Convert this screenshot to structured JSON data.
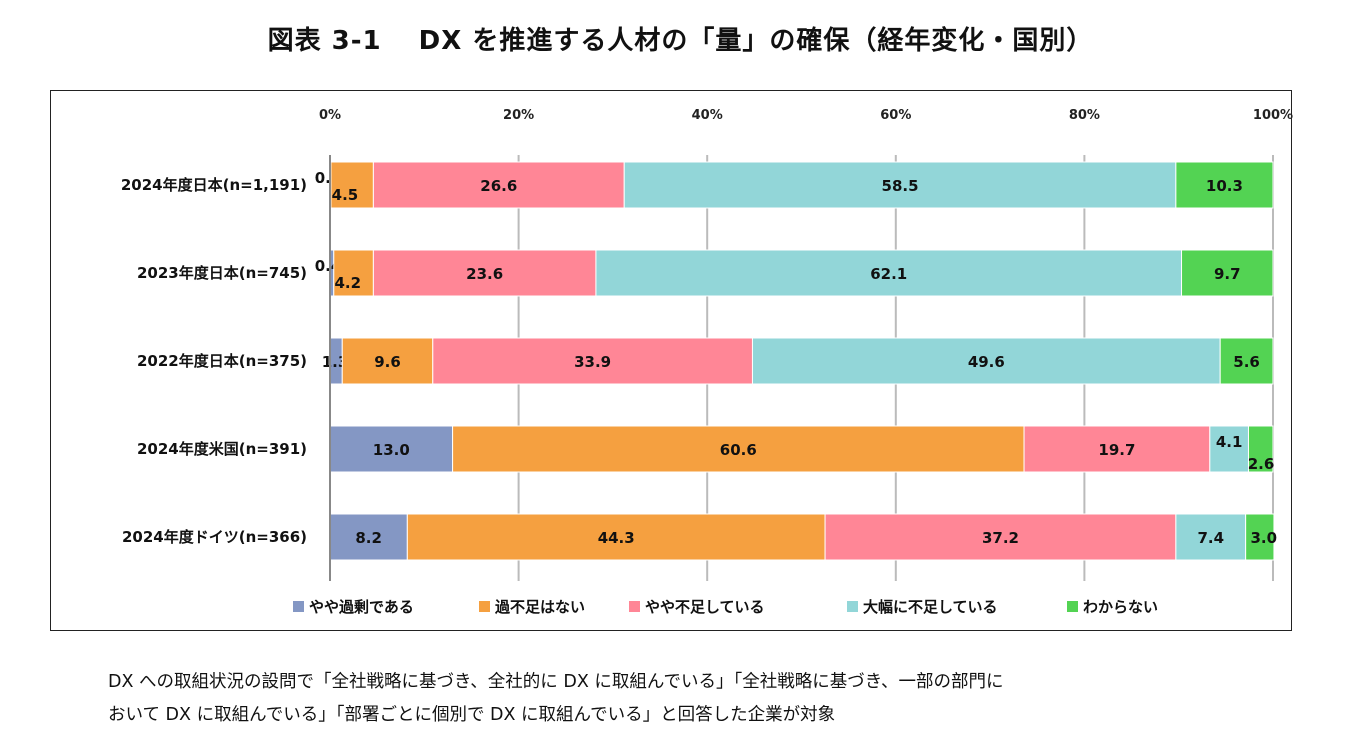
{
  "title": "図表 3-1　 DX を推進する人材の「量」の確保（経年変化・国別）",
  "chart_data": {
    "type": "bar",
    "orientation": "horizontal",
    "stacked": "percent",
    "categories": [
      "2024年度日本(n=1,191)",
      "2023年度日本(n=745)",
      "2022年度日本(n=375)",
      "2024年度米国(n=391)",
      "2024年度ドイツ(n=366)"
    ],
    "series": [
      {
        "name": "やや過剰である",
        "color": "#8497c4",
        "values": [
          0.1,
          0.4,
          1.3,
          13.0,
          8.2
        ],
        "labels": [
          "0.1",
          "0.4",
          "1.3",
          "13.0",
          "8.2"
        ]
      },
      {
        "name": "過不足はない",
        "color": "#f5a040",
        "values": [
          4.5,
          4.2,
          9.6,
          60.6,
          44.3
        ],
        "labels": [
          "4.5",
          "4.2",
          "9.6",
          "60.6",
          "44.3"
        ]
      },
      {
        "name": "やや不足している",
        "color": "#ff8696",
        "values": [
          26.6,
          23.6,
          33.9,
          19.7,
          37.2
        ],
        "labels": [
          "26.6",
          "23.6",
          "33.9",
          "19.7",
          "37.2"
        ]
      },
      {
        "name": "大幅に不足している",
        "color": "#92d6d8",
        "values": [
          58.5,
          62.1,
          49.6,
          4.1,
          7.4
        ],
        "labels": [
          "58.5",
          "62.1",
          "49.6",
          "4.1",
          "7.4"
        ]
      },
      {
        "name": "わからない",
        "color": "#53d353",
        "values": [
          10.3,
          9.7,
          5.6,
          2.6,
          3.0
        ],
        "labels": [
          "10.3",
          "9.7",
          "5.6",
          "2.6",
          "3.0"
        ]
      }
    ],
    "xticks": [
      "0%",
      "20%",
      "40%",
      "60%",
      "80%",
      "100%"
    ],
    "xlim": [
      0,
      100
    ],
    "grid": true,
    "legend": "bottom"
  },
  "notes": [
    "DX への取組状況の設問で「全社戦略に基づき、全社的に DX に取組んでいる」「全社戦略に基づき、一部の部門に",
    "おいて DX に取組んでいる」「部署ごとに個別で DX に取組んでいる」と回答した企業が対象"
  ]
}
